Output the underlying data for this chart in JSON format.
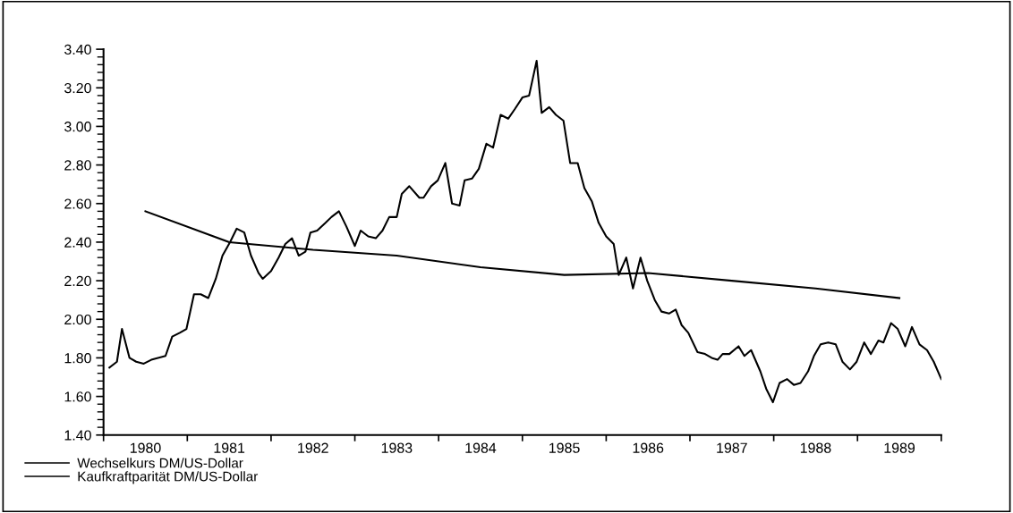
{
  "chart_data": {
    "type": "line",
    "series": [
      {
        "name": "Wechselkurs DM/US-Dollar",
        "color": "#000000",
        "x": [
          1980.07,
          1980.16,
          1980.22,
          1980.31,
          1980.39,
          1980.48,
          1980.57,
          1980.65,
          1980.74,
          1980.82,
          1980.91,
          1980.99,
          1981.08,
          1981.16,
          1981.25,
          1981.34,
          1981.42,
          1981.51,
          1981.59,
          1981.68,
          1981.76,
          1981.85,
          1981.9,
          1982.0,
          1982.09,
          1982.17,
          1982.25,
          1982.33,
          1982.41,
          1982.47,
          1982.55,
          1982.65,
          1982.72,
          1982.81,
          1982.9,
          1983.0,
          1983.07,
          1983.16,
          1983.25,
          1983.33,
          1983.41,
          1983.5,
          1983.56,
          1983.65,
          1983.77,
          1983.82,
          1983.91,
          1983.99,
          1984.08,
          1984.16,
          1984.25,
          1984.31,
          1984.4,
          1984.48,
          1984.57,
          1984.65,
          1984.74,
          1984.83,
          1984.91,
          1985.0,
          1985.08,
          1985.17,
          1985.23,
          1985.32,
          1985.4,
          1985.49,
          1985.57,
          1985.66,
          1985.74,
          1985.83,
          1985.91,
          1986.0,
          1986.09,
          1986.15,
          1986.24,
          1986.32,
          1986.41,
          1986.49,
          1986.58,
          1986.66,
          1986.75,
          1986.83,
          1986.9,
          1986.98,
          1987.09,
          1987.18,
          1987.26,
          1987.33,
          1987.39,
          1987.47,
          1987.58,
          1987.65,
          1987.73,
          1987.84,
          1987.91,
          1987.99,
          1988.07,
          1988.16,
          1988.24,
          1988.32,
          1988.41,
          1988.48,
          1988.56,
          1988.65,
          1988.74,
          1988.82,
          1988.91,
          1988.99,
          1989.08,
          1989.16,
          1989.25,
          1989.31,
          1989.4,
          1989.48,
          1989.57,
          1989.65,
          1989.74,
          1989.83,
          1989.91,
          1990.0
        ],
        "values": [
          1.75,
          1.78,
          1.95,
          1.8,
          1.78,
          1.77,
          1.79,
          1.8,
          1.81,
          1.91,
          1.93,
          1.95,
          2.13,
          2.13,
          2.11,
          2.21,
          2.33,
          2.4,
          2.47,
          2.45,
          2.33,
          2.24,
          2.21,
          2.25,
          2.32,
          2.39,
          2.42,
          2.33,
          2.35,
          2.45,
          2.46,
          2.5,
          2.53,
          2.56,
          2.48,
          2.38,
          2.46,
          2.43,
          2.42,
          2.46,
          2.53,
          2.53,
          2.65,
          2.69,
          2.63,
          2.63,
          2.69,
          2.72,
          2.81,
          2.6,
          2.59,
          2.72,
          2.73,
          2.78,
          2.91,
          2.89,
          3.06,
          3.04,
          3.09,
          3.15,
          3.16,
          3.34,
          3.07,
          3.1,
          3.06,
          3.03,
          2.81,
          2.81,
          2.68,
          2.61,
          2.5,
          2.43,
          2.39,
          2.23,
          2.32,
          2.16,
          2.32,
          2.2,
          2.1,
          2.04,
          2.03,
          2.05,
          1.97,
          1.93,
          1.83,
          1.82,
          1.8,
          1.79,
          1.82,
          1.82,
          1.86,
          1.81,
          1.84,
          1.73,
          1.64,
          1.57,
          1.67,
          1.69,
          1.66,
          1.67,
          1.73,
          1.81,
          1.87,
          1.88,
          1.87,
          1.78,
          1.74,
          1.78,
          1.88,
          1.82,
          1.89,
          1.88,
          1.98,
          1.95,
          1.86,
          1.96,
          1.87,
          1.84,
          1.78,
          1.69
        ]
      },
      {
        "name": "Kaufkraftparität DM/US-Dollar",
        "color": "#000000",
        "x": [
          1980.5,
          1981.5,
          1982.5,
          1983.5,
          1984.5,
          1985.5,
          1986.5,
          1987.5,
          1988.5,
          1989.5
        ],
        "values": [
          2.56,
          2.4,
          2.36,
          2.33,
          2.27,
          2.23,
          2.24,
          2.2,
          2.16,
          2.11
        ]
      }
    ],
    "xlim": [
      1980,
      1990
    ],
    "xticks": [
      {
        "value": 1980,
        "label": null
      },
      {
        "value": 1981,
        "label": null
      },
      {
        "value": 1982,
        "label": null
      },
      {
        "value": 1983,
        "label": null
      },
      {
        "value": 1984,
        "label": null
      },
      {
        "value": 1985,
        "label": null
      },
      {
        "value": 1986,
        "label": null
      },
      {
        "value": 1987,
        "label": null
      },
      {
        "value": 1988,
        "label": null
      },
      {
        "value": 1989,
        "label": null
      },
      {
        "value": 1990,
        "label": null
      },
      {
        "value": 1980.5,
        "label": "1980"
      },
      {
        "value": 1981.5,
        "label": "1981"
      },
      {
        "value": 1982.5,
        "label": "1982"
      },
      {
        "value": 1983.5,
        "label": "1983"
      },
      {
        "value": 1984.5,
        "label": "1984"
      },
      {
        "value": 1985.5,
        "label": "1985"
      },
      {
        "value": 1986.5,
        "label": "1986"
      },
      {
        "value": 1987.5,
        "label": "1987"
      },
      {
        "value": 1988.5,
        "label": "1988"
      },
      {
        "value": 1989.5,
        "label": "1989"
      }
    ],
    "ylim": [
      1.4,
      3.4
    ],
    "yticks": [
      {
        "value": 1.4,
        "label": "1.40"
      },
      {
        "value": 1.6,
        "label": "1.60"
      },
      {
        "value": 1.8,
        "label": "1.80"
      },
      {
        "value": 2.0,
        "label": "2.00"
      },
      {
        "value": 2.2,
        "label": "2.20"
      },
      {
        "value": 2.4,
        "label": "2.40"
      },
      {
        "value": 2.6,
        "label": "2.60"
      },
      {
        "value": 2.8,
        "label": "2.80"
      },
      {
        "value": 3.0,
        "label": "3.00"
      },
      {
        "value": 3.2,
        "label": "3.20"
      },
      {
        "value": 3.4,
        "label": "3.40"
      },
      {
        "value": 1.44,
        "label": null
      },
      {
        "value": 1.48,
        "label": null
      },
      {
        "value": 1.52,
        "label": null
      },
      {
        "value": 1.56,
        "label": null
      },
      {
        "value": 1.64,
        "label": null
      },
      {
        "value": 1.68,
        "label": null
      },
      {
        "value": 1.72,
        "label": null
      },
      {
        "value": 1.76,
        "label": null
      },
      {
        "value": 1.84,
        "label": null
      },
      {
        "value": 1.88,
        "label": null
      },
      {
        "value": 1.92,
        "label": null
      },
      {
        "value": 1.96,
        "label": null
      },
      {
        "value": 2.04,
        "label": null
      },
      {
        "value": 2.08,
        "label": null
      },
      {
        "value": 2.12,
        "label": null
      },
      {
        "value": 2.16,
        "label": null
      },
      {
        "value": 2.24,
        "label": null
      },
      {
        "value": 2.28,
        "label": null
      },
      {
        "value": 2.32,
        "label": null
      },
      {
        "value": 2.36,
        "label": null
      },
      {
        "value": 2.44,
        "label": null
      },
      {
        "value": 2.48,
        "label": null
      },
      {
        "value": 2.52,
        "label": null
      },
      {
        "value": 2.56,
        "label": null
      },
      {
        "value": 2.64,
        "label": null
      },
      {
        "value": 2.68,
        "label": null
      },
      {
        "value": 2.72,
        "label": null
      },
      {
        "value": 2.76,
        "label": null
      },
      {
        "value": 2.84,
        "label": null
      },
      {
        "value": 2.88,
        "label": null
      },
      {
        "value": 2.92,
        "label": null
      },
      {
        "value": 2.96,
        "label": null
      },
      {
        "value": 3.04,
        "label": null
      },
      {
        "value": 3.08,
        "label": null
      },
      {
        "value": 3.12,
        "label": null
      },
      {
        "value": 3.16,
        "label": null
      },
      {
        "value": 3.24,
        "label": null
      },
      {
        "value": 3.28,
        "label": null
      },
      {
        "value": 3.32,
        "label": null
      },
      {
        "value": 3.36,
        "label": null
      }
    ],
    "grid": false,
    "legend": "bottom left",
    "marker": "none",
    "line_style": "solid"
  }
}
